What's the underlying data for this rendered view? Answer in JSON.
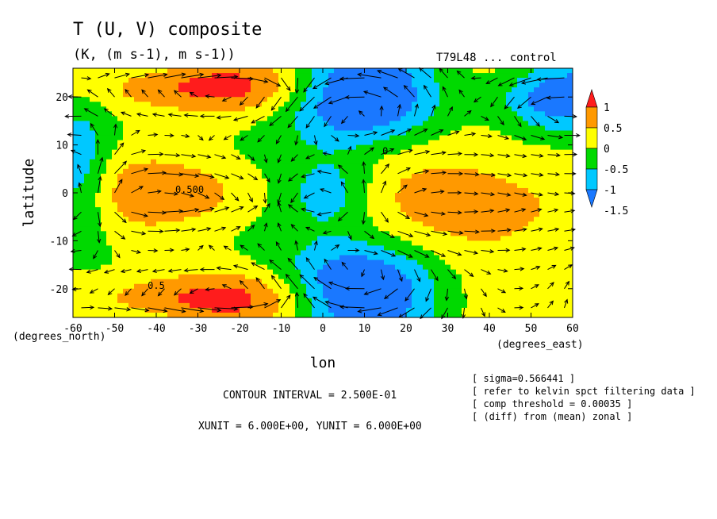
{
  "chart_data": {
    "type": "heatmap",
    "title": "T (U, V) composite",
    "subtitle": "(K, (m s-1), m s-1))",
    "run_label": "T79L48 ... control",
    "xlabel": "lon",
    "ylabel": "latitude",
    "x_unit_label": "(degrees_east)",
    "y_unit_label": "(degrees_north)",
    "xlim": [
      -60,
      60
    ],
    "ylim": [
      -26,
      26
    ],
    "x_ticks": [
      -60,
      -50,
      -40,
      -30,
      -20,
      -10,
      0,
      10,
      20,
      30,
      40,
      50,
      60
    ],
    "x_tick_labels": [
      "-60",
      "-50",
      "-40",
      "-30",
      "-20",
      "-10",
      "0",
      "10",
      "20",
      "30",
      "40",
      "50",
      "60"
    ],
    "y_ticks": [
      -20,
      -10,
      0,
      10,
      20
    ],
    "y_tick_labels": [
      "-20",
      "-10",
      "0",
      "10",
      "20"
    ],
    "colorbar": {
      "levels": [
        -1.5,
        -1,
        -0.5,
        0,
        0.5,
        1
      ],
      "tick_labels": [
        "-1.5",
        "-1",
        "-0.5",
        "0",
        "0.5",
        "1"
      ],
      "colors": [
        "#1a78ff",
        "#00c8ff",
        "#00d900",
        "#ffff00",
        "#ff9900",
        "#ff1c1c"
      ],
      "extend": "both"
    },
    "contour_labels": [
      "0.500",
      "0.5",
      "0"
    ],
    "annotations": {
      "contour_interval": "CONTOUR INTERVAL = 2.500E-01",
      "vector_units": "XUNIT = 6.000E+00, YUNIT = 6.000E+00",
      "info_lines": [
        "[ sigma=0.566441 ]",
        "[ refer to kelvin spct filtering data ]",
        "[ comp threshold = 0.00035 ]",
        "[ (diff) from (mean) zonal ]"
      ]
    },
    "grid": false,
    "legend_position": "right"
  }
}
